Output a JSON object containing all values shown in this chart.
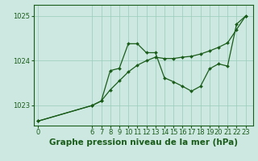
{
  "title": "Graphe pression niveau de la mer (hPa)",
  "background_color": "#cce8e0",
  "line_color": "#1a5c1a",
  "marker_color": "#1a5c1a",
  "grid_color": "#99ccbb",
  "axis_color": "#1a5c1a",
  "x_ticks": [
    0,
    6,
    7,
    8,
    9,
    10,
    11,
    12,
    13,
    14,
    15,
    16,
    17,
    18,
    19,
    20,
    21,
    22,
    23
  ],
  "y_ticks": [
    1023,
    1024,
    1025
  ],
  "ylim": [
    1022.55,
    1025.25
  ],
  "xlim": [
    -0.5,
    23.8
  ],
  "jagged_x": [
    0,
    6,
    7,
    8,
    9,
    10,
    11,
    12,
    13,
    14,
    15,
    16,
    17,
    18,
    19,
    20,
    21,
    22,
    23
  ],
  "jagged_y": [
    1022.65,
    1023.0,
    1023.1,
    1023.78,
    1023.83,
    1024.38,
    1024.38,
    1024.18,
    1024.18,
    1023.62,
    1023.53,
    1023.43,
    1023.32,
    1023.43,
    1023.82,
    1023.93,
    1023.88,
    1024.82,
    1025.0
  ],
  "trend_x": [
    0,
    6,
    7,
    8,
    9,
    10,
    11,
    12,
    13,
    14,
    15,
    16,
    17,
    18,
    19,
    20,
    21,
    22,
    23
  ],
  "trend_y": [
    1022.65,
    1023.0,
    1023.1,
    1023.35,
    1023.55,
    1023.75,
    1023.9,
    1024.0,
    1024.08,
    1024.05,
    1024.05,
    1024.08,
    1024.1,
    1024.15,
    1024.22,
    1024.3,
    1024.4,
    1024.7,
    1025.0
  ],
  "title_fontsize": 7.5,
  "tick_fontsize": 6.0
}
